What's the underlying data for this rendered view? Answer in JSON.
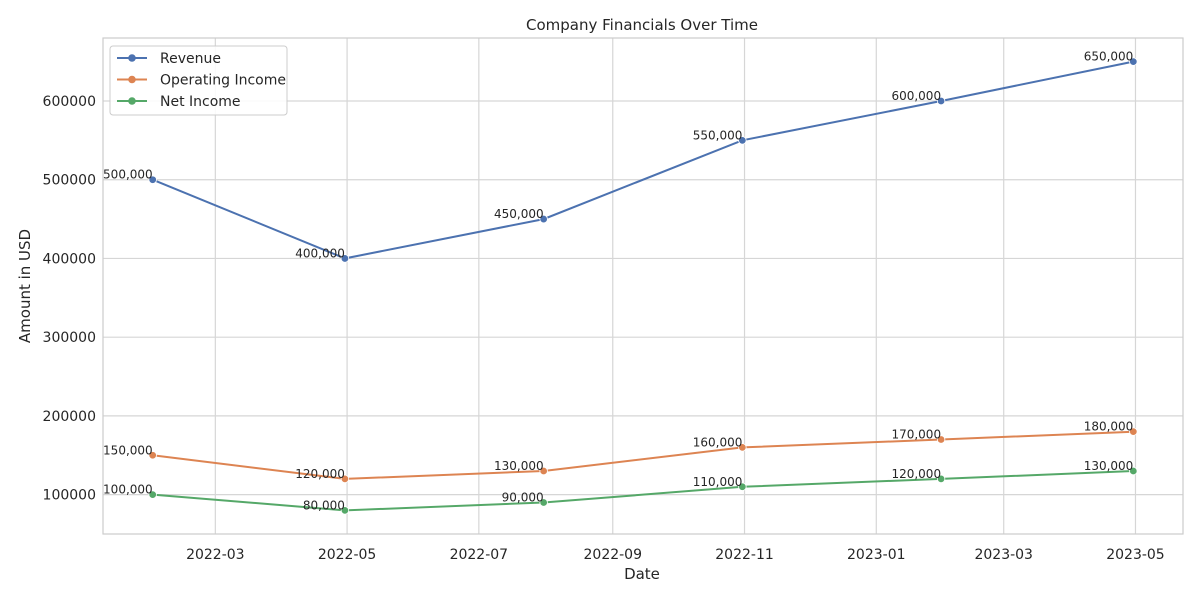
{
  "chart_data": {
    "type": "line",
    "title": "Company Financials Over Time",
    "xlabel": "Date",
    "ylabel": "Amount in USD",
    "x": [
      "2022-01-31",
      "2022-04-30",
      "2022-07-31",
      "2022-10-31",
      "2023-01-31",
      "2023-04-30"
    ],
    "x_ticks": [
      "2022-03-01",
      "2022-05-01",
      "2022-07-01",
      "2022-09-01",
      "2022-11-01",
      "2023-01-01",
      "2023-03-01",
      "2023-05-01"
    ],
    "x_tick_labels": [
      "2022-03",
      "2022-05",
      "2022-07",
      "2022-09",
      "2022-11",
      "2023-01",
      "2023-03",
      "2023-05"
    ],
    "xlim": [
      "2022-01-08",
      "2023-05-23"
    ],
    "y_ticks": [
      100000,
      200000,
      300000,
      400000,
      500000,
      600000
    ],
    "y_tick_labels": [
      "100000",
      "200000",
      "300000",
      "400000",
      "500000",
      "600000"
    ],
    "ylim": [
      50000,
      680000
    ],
    "grid": true,
    "legend_position": "top-left",
    "series": [
      {
        "name": "Revenue",
        "color": "#4c72b0",
        "values": [
          500000,
          400000,
          450000,
          550000,
          600000,
          650000
        ],
        "labels": [
          "500,000",
          "400,000",
          "450,000",
          "550,000",
          "600,000",
          "650,000"
        ]
      },
      {
        "name": "Operating Income",
        "color": "#dd8452",
        "values": [
          150000,
          120000,
          130000,
          160000,
          170000,
          180000
        ],
        "labels": [
          "150,000",
          "120,000",
          "130,000",
          "160,000",
          "170,000",
          "180,000"
        ]
      },
      {
        "name": "Net Income",
        "color": "#55a868",
        "values": [
          100000,
          80000,
          90000,
          110000,
          120000,
          130000
        ],
        "labels": [
          "100,000",
          "80,000",
          "90,000",
          "110,000",
          "120,000",
          "130,000"
        ]
      }
    ]
  }
}
